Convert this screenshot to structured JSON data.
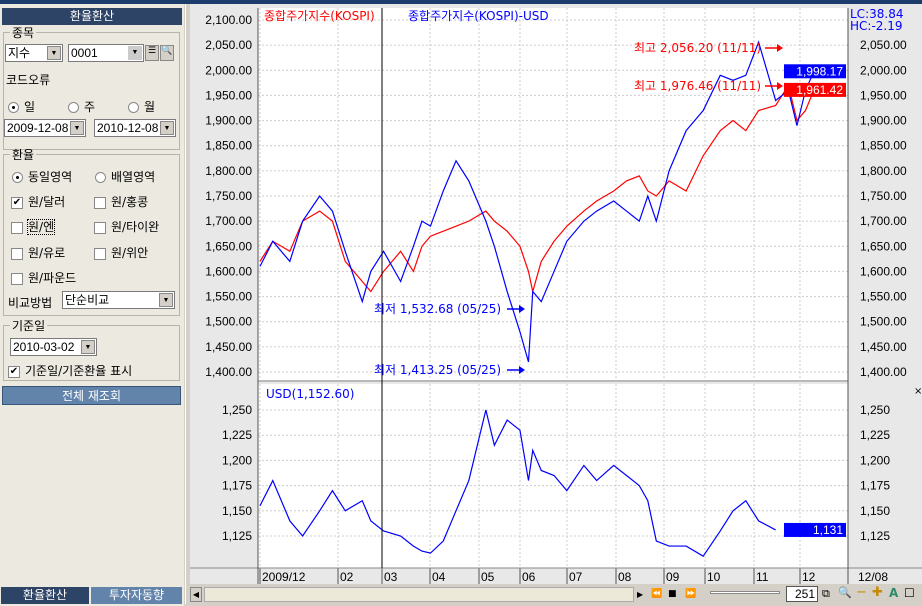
{
  "sidebar": {
    "title": "환율환산",
    "item_group": "종목",
    "item_type": "지수",
    "item_code": "0001",
    "code_error": "코드오류",
    "period": [
      {
        "label": "일",
        "selected": true
      },
      {
        "label": "주",
        "selected": false
      },
      {
        "label": "월",
        "selected": false
      }
    ],
    "start_date": "2009-12-08",
    "end_date": "2010-12-08",
    "fx_group": "환율",
    "area": [
      {
        "label": "동일영역",
        "selected": true
      },
      {
        "label": "배열영역",
        "selected": false
      }
    ],
    "currencies": [
      {
        "label": "원/달러",
        "checked": true
      },
      {
        "label": "원/홍콩",
        "checked": false
      },
      {
        "label": "원/엔",
        "checked": false
      },
      {
        "label": "원/타이완",
        "checked": false
      },
      {
        "label": "원/유로",
        "checked": false
      },
      {
        "label": "원/위안",
        "checked": false
      },
      {
        "label": "원/파운드",
        "checked": false
      }
    ],
    "compare_label": "비교방법",
    "compare_value": "단순비교",
    "base_group": "기준일",
    "base_date": "2010-03-02",
    "show_base": "기준일/기준환율 표시",
    "refresh": "전체 재조회",
    "tabs": [
      "환율환산",
      "투자자동향"
    ]
  },
  "chart_data": {
    "type": "line",
    "legend": [
      "종합주가지수(KOSPI)",
      "종합주가지수(KOSPI)-USD"
    ],
    "colors": {
      "kospi": "#ff0000",
      "kospi_usd": "#0000ff",
      "usd": "#0000ff"
    },
    "lc": "LC:38.84",
    "hc": "HC:-2.19",
    "top_ylim": [
      1400,
      2100
    ],
    "top_ticks": [
      "2,100.00",
      "2,050.00",
      "2,000.00",
      "1,950.00",
      "1,900.00",
      "1,850.00",
      "1,800.00",
      "1,750.00",
      "1,700.00",
      "1,650.00",
      "1,600.00",
      "1,550.00",
      "1,500.00",
      "1,450.00",
      "1,400.00"
    ],
    "right_ticks": [
      "2,050.00",
      "2,000.00",
      "1,950.00",
      "1,900.00",
      "1,850.00",
      "1,800.00",
      "1,750.00",
      "1,700.00",
      "1,650.00",
      "1,600.00",
      "1,550.00",
      "1,500.00",
      "1,450.00",
      "1,400.00"
    ],
    "last_usd_adj": "1,998.17",
    "last_kospi": "1,961.42",
    "annotations": [
      {
        "text": "최고 2,056.20 (11/11)",
        "value": 2056.2,
        "color": "#ff0000"
      },
      {
        "text": "최고 1,976.46 (11/11)",
        "value": 1976.46,
        "color": "#ff0000"
      },
      {
        "text": "최저 1,532.68 (05/25)",
        "value": 1532.68,
        "color": "#0000ff"
      },
      {
        "text": "최저 1,413.25 (05/25)",
        "value": 1413.25,
        "color": "#0000ff"
      }
    ],
    "bottom_title": "USD(1,152.60)",
    "bottom_ylim": [
      1100,
      1260
    ],
    "bottom_ticks": [
      "1,250",
      "1,225",
      "1,200",
      "1,175",
      "1,150",
      "1,125"
    ],
    "last_usd": "1,131",
    "x_labels": [
      "2009/12",
      "02",
      "03",
      "04",
      "05",
      "06",
      "07",
      "08",
      "09",
      "10",
      "11",
      "12"
    ],
    "x_end_label": "12/08",
    "t": [
      0,
      3,
      7,
      10,
      14,
      17,
      20,
      24,
      26,
      29,
      33,
      36,
      38,
      40,
      43,
      46,
      49,
      53,
      55,
      58,
      61,
      63,
      64,
      66,
      69,
      72,
      76,
      79,
      83,
      86,
      89,
      91,
      93,
      96,
      100,
      104,
      108,
      111,
      114,
      117,
      121,
      124,
      126,
      128,
      130
    ],
    "kospi": [
      1620,
      1660,
      1640,
      1700,
      1720,
      1700,
      1620,
      1580,
      1560,
      1600,
      1640,
      1600,
      1650,
      1670,
      1680,
      1690,
      1700,
      1720,
      1700,
      1680,
      1650,
      1600,
      1560,
      1620,
      1660,
      1690,
      1720,
      1740,
      1760,
      1780,
      1790,
      1760,
      1750,
      1780,
      1760,
      1830,
      1880,
      1900,
      1880,
      1920,
      1930,
      1970,
      1900,
      1920,
      1961
    ],
    "kospi_usd": [
      1610,
      1660,
      1620,
      1700,
      1750,
      1720,
      1640,
      1540,
      1600,
      1640,
      1580,
      1650,
      1700,
      1690,
      1760,
      1820,
      1780,
      1700,
      1650,
      1560,
      1480,
      1420,
      1560,
      1540,
      1600,
      1660,
      1700,
      1720,
      1740,
      1720,
      1700,
      1750,
      1700,
      1800,
      1880,
      1920,
      1990,
      1980,
      1990,
      2056,
      1940,
      1960,
      1890,
      1960,
      1998
    ],
    "usd": [
      1155,
      1180,
      1140,
      1125,
      1150,
      1170,
      1150,
      1160,
      1140,
      1130,
      1125,
      1115,
      1110,
      1108,
      1120,
      1150,
      1180,
      1250,
      1215,
      1240,
      1230,
      1180,
      1210,
      1190,
      1185,
      1170,
      1195,
      1180,
      1195,
      1185,
      1175,
      1160,
      1120,
      1115,
      1115,
      1105,
      1130,
      1150,
      1160,
      1140,
      1131,
      1131,
      1131,
      1131,
      1131
    ],
    "base_line_t": 32
  },
  "scrollbar": {
    "zoom_count": "251"
  }
}
